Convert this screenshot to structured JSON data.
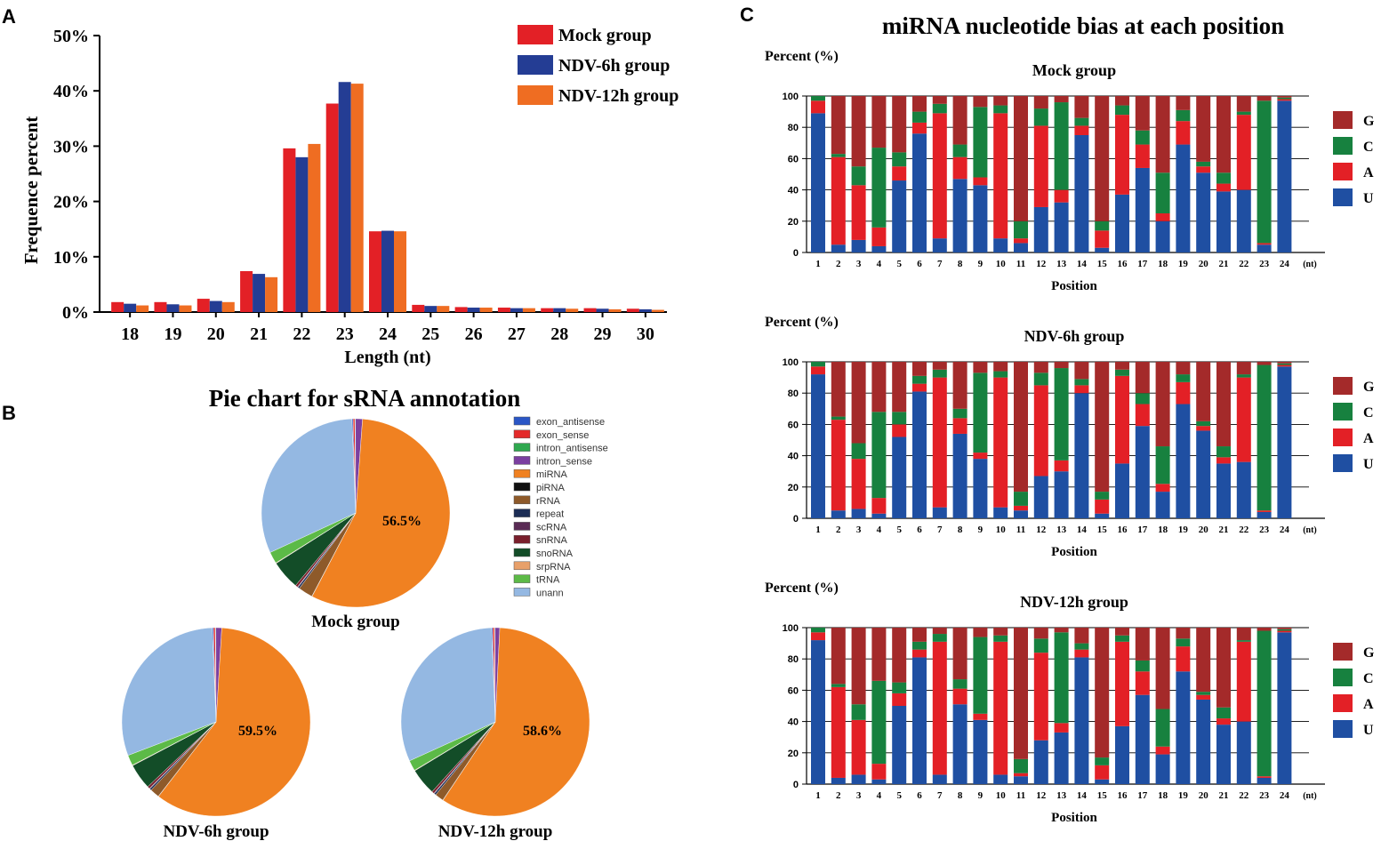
{
  "colors": {
    "mock": "#e32026",
    "ndv6": "#243d94",
    "ndv12": "#ef6d22",
    "G": "#a42a2a",
    "C": "#17813f",
    "A": "#e32026",
    "U": "#1f4fa2",
    "pie": {
      "exon_antisense": "#2a56c6",
      "exon_sense": "#e42a2a",
      "intron_antisense": "#2fa84f",
      "intron_sense": "#7b3fa0",
      "miRNA": "#f08121",
      "piRNA": "#111111",
      "rRNA": "#8e5a2a",
      "repeat": "#1c2d55",
      "scRNA": "#5a2b55",
      "snRNA": "#7a1f2c",
      "snoRNA": "#134d28",
      "srpRNA": "#e8a06a",
      "tRNA": "#5cba47",
      "unann": "#94b8e2"
    }
  },
  "panels": {
    "A": {
      "letter": "A"
    },
    "B": {
      "letter": "B"
    },
    "C": {
      "letter": "C",
      "title": "miRNA nucleotide bias at each position"
    }
  },
  "chart_data": [
    {
      "type": "bar",
      "panel": "A",
      "title": "",
      "xlabel": "Length (nt)",
      "ylabel": "Frequence percent",
      "categories": [
        "18",
        "19",
        "20",
        "21",
        "22",
        "23",
        "24",
        "25",
        "26",
        "27",
        "28",
        "29",
        "30"
      ],
      "yticks": [
        "0%",
        "10%",
        "20%",
        "30%",
        "40%",
        "50%"
      ],
      "ylim": [
        0,
        50
      ],
      "legend_position": "top-right",
      "series": [
        {
          "name": "Mock group",
          "color_key": "mock",
          "values": [
            1.8,
            1.8,
            2.4,
            7.4,
            29.6,
            37.7,
            14.6,
            1.3,
            0.9,
            0.8,
            0.7,
            0.7,
            0.6
          ]
        },
        {
          "name": "NDV-6h group",
          "color_key": "ndv6",
          "values": [
            1.5,
            1.4,
            2.0,
            6.9,
            28.0,
            41.6,
            14.7,
            1.1,
            0.8,
            0.7,
            0.7,
            0.6,
            0.5
          ]
        },
        {
          "name": "NDV-12h group",
          "color_key": "ndv12",
          "values": [
            1.2,
            1.2,
            1.8,
            6.3,
            30.4,
            41.3,
            14.6,
            1.1,
            0.8,
            0.7,
            0.6,
            0.5,
            0.4
          ]
        }
      ]
    },
    {
      "type": "pie",
      "panel": "B",
      "title": "Pie chart for sRNA annotation",
      "legend": [
        "exon_antisense",
        "exon_sense",
        "intron_antisense",
        "intron_sense",
        "miRNA",
        "piRNA",
        "rRNA",
        "repeat",
        "scRNA",
        "snRNA",
        "snoRNA",
        "srpRNA",
        "tRNA",
        "unann"
      ],
      "pies": [
        {
          "name": "Mock group",
          "label": "56.5%",
          "values": {
            "exon_antisense": 0.2,
            "exon_sense": 0.3,
            "intron_antisense": 0.1,
            "intron_sense": 1.2,
            "miRNA": 56.5,
            "piRNA": 0.05,
            "rRNA": 2.5,
            "repeat": 0.3,
            "scRNA": 0.1,
            "snRNA": 0.4,
            "snoRNA": 5.0,
            "srpRNA": 0.1,
            "tRNA": 2.0,
            "unann": 31.25
          }
        },
        {
          "name": "NDV-6h group",
          "label": "59.5%",
          "values": {
            "exon_antisense": 0.2,
            "exon_sense": 0.3,
            "intron_antisense": 0.1,
            "intron_sense": 1.0,
            "miRNA": 59.5,
            "piRNA": 0.05,
            "rRNA": 1.6,
            "repeat": 0.3,
            "scRNA": 0.1,
            "snRNA": 0.4,
            "snoRNA": 4.4,
            "srpRNA": 0.1,
            "tRNA": 1.8,
            "unann": 30.15
          }
        },
        {
          "name": "NDV-12h group",
          "label": "58.6%",
          "values": {
            "exon_antisense": 0.2,
            "exon_sense": 0.3,
            "intron_antisense": 0.1,
            "intron_sense": 0.8,
            "miRNA": 58.6,
            "piRNA": 0.05,
            "rRNA": 1.5,
            "repeat": 0.3,
            "scRNA": 0.1,
            "snRNA": 0.4,
            "snoRNA": 4.6,
            "srpRNA": 0.1,
            "tRNA": 1.8,
            "unann": 31.15
          }
        }
      ]
    },
    {
      "type": "bar",
      "stacked": true,
      "panel": "C",
      "charts": [
        {
          "title": "Mock group",
          "ylabel": "Percent (%)",
          "xlabel": "Position",
          "x_unit": "(nt)",
          "categories": [
            "1",
            "2",
            "3",
            "4",
            "5",
            "6",
            "7",
            "8",
            "9",
            "10",
            "11",
            "12",
            "13",
            "14",
            "15",
            "16",
            "17",
            "18",
            "19",
            "20",
            "21",
            "22",
            "23",
            "24"
          ],
          "yticks": [
            "0",
            "20",
            "40",
            "60",
            "80",
            "100"
          ],
          "ylim": [
            0,
            100
          ],
          "legend": [
            "G",
            "C",
            "A",
            "U"
          ],
          "series": [
            {
              "name": "U",
              "values": [
                89,
                5,
                8,
                4,
                46,
                76,
                9,
                47,
                43,
                9,
                6,
                29,
                32,
                75,
                3,
                37,
                54,
                20,
                69,
                51,
                39,
                40,
                5,
                97
              ]
            },
            {
              "name": "A",
              "values": [
                8,
                56,
                35,
                12,
                9,
                7,
                80,
                14,
                5,
                80,
                3,
                52,
                8,
                6,
                11,
                51,
                15,
                5,
                15,
                4,
                5,
                48,
                1,
                1
              ]
            },
            {
              "name": "C",
              "values": [
                3,
                2,
                12,
                51,
                9,
                7,
                6,
                8,
                45,
                5,
                11,
                11,
                56,
                5,
                6,
                6,
                9,
                26,
                7,
                3,
                7,
                2,
                91,
                1
              ]
            },
            {
              "name": "G",
              "values": [
                0,
                37,
                45,
                33,
                36,
                10,
                5,
                31,
                7,
                6,
                80,
                8,
                4,
                14,
                80,
                6,
                22,
                49,
                9,
                42,
                49,
                10,
                3,
                1
              ]
            }
          ]
        },
        {
          "title": "NDV-6h group",
          "ylabel": "Percent (%)",
          "xlabel": "Position",
          "x_unit": "(nt)",
          "categories": [
            "1",
            "2",
            "3",
            "4",
            "5",
            "6",
            "7",
            "8",
            "9",
            "10",
            "11",
            "12",
            "13",
            "14",
            "15",
            "16",
            "17",
            "18",
            "19",
            "20",
            "21",
            "22",
            "23",
            "24"
          ],
          "yticks": [
            "0",
            "20",
            "40",
            "60",
            "80",
            "100"
          ],
          "ylim": [
            0,
            100
          ],
          "legend": [
            "G",
            "C",
            "A",
            "U"
          ],
          "series": [
            {
              "name": "U",
              "values": [
                92,
                5,
                6,
                3,
                52,
                81,
                7,
                54,
                38,
                7,
                5,
                27,
                30,
                80,
                3,
                35,
                59,
                17,
                73,
                56,
                35,
                36,
                4,
                97
              ]
            },
            {
              "name": "A",
              "values": [
                5,
                58,
                32,
                10,
                8,
                5,
                83,
                10,
                4,
                83,
                3,
                58,
                7,
                5,
                9,
                56,
                14,
                5,
                14,
                3,
                4,
                54,
                1,
                1
              ]
            },
            {
              "name": "C",
              "values": [
                3,
                2,
                10,
                55,
                8,
                5,
                5,
                6,
                51,
                4,
                9,
                8,
                59,
                4,
                5,
                4,
                7,
                24,
                5,
                3,
                7,
                2,
                93,
                1
              ]
            },
            {
              "name": "G",
              "values": [
                0,
                35,
                52,
                32,
                32,
                9,
                5,
                30,
                7,
                6,
                83,
                7,
                4,
                11,
                83,
                5,
                20,
                54,
                8,
                38,
                54,
                8,
                2,
                1
              ]
            }
          ]
        },
        {
          "title": "NDV-12h group",
          "ylabel": "Percent (%)",
          "xlabel": "Position",
          "x_unit": "(nt)",
          "categories": [
            "1",
            "2",
            "3",
            "4",
            "5",
            "6",
            "7",
            "8",
            "9",
            "10",
            "11",
            "12",
            "13",
            "14",
            "15",
            "16",
            "17",
            "18",
            "19",
            "20",
            "21",
            "22",
            "23",
            "24"
          ],
          "yticks": [
            "0",
            "20",
            "40",
            "60",
            "80",
            "100"
          ],
          "ylim": [
            0,
            100
          ],
          "legend": [
            "G",
            "C",
            "A",
            "U"
          ],
          "series": [
            {
              "name": "U",
              "values": [
                92,
                4,
                6,
                3,
                50,
                81,
                6,
                51,
                41,
                6,
                5,
                28,
                33,
                81,
                3,
                37,
                57,
                19,
                72,
                54,
                38,
                40,
                4,
                97
              ]
            },
            {
              "name": "A",
              "values": [
                5,
                58,
                35,
                10,
                8,
                5,
                85,
                10,
                4,
                85,
                2,
                56,
                6,
                5,
                9,
                54,
                15,
                5,
                16,
                3,
                4,
                51,
                1,
                1
              ]
            },
            {
              "name": "C",
              "values": [
                3,
                2,
                10,
                53,
                7,
                5,
                5,
                6,
                49,
                4,
                9,
                9,
                58,
                4,
                5,
                4,
                7,
                24,
                5,
                2,
                7,
                1,
                93,
                1
              ]
            },
            {
              "name": "G",
              "values": [
                0,
                36,
                49,
                34,
                35,
                9,
                4,
                33,
                6,
                5,
                84,
                7,
                3,
                10,
                83,
                5,
                21,
                52,
                7,
                41,
                51,
                8,
                2,
                1
              ]
            }
          ]
        }
      ]
    }
  ]
}
